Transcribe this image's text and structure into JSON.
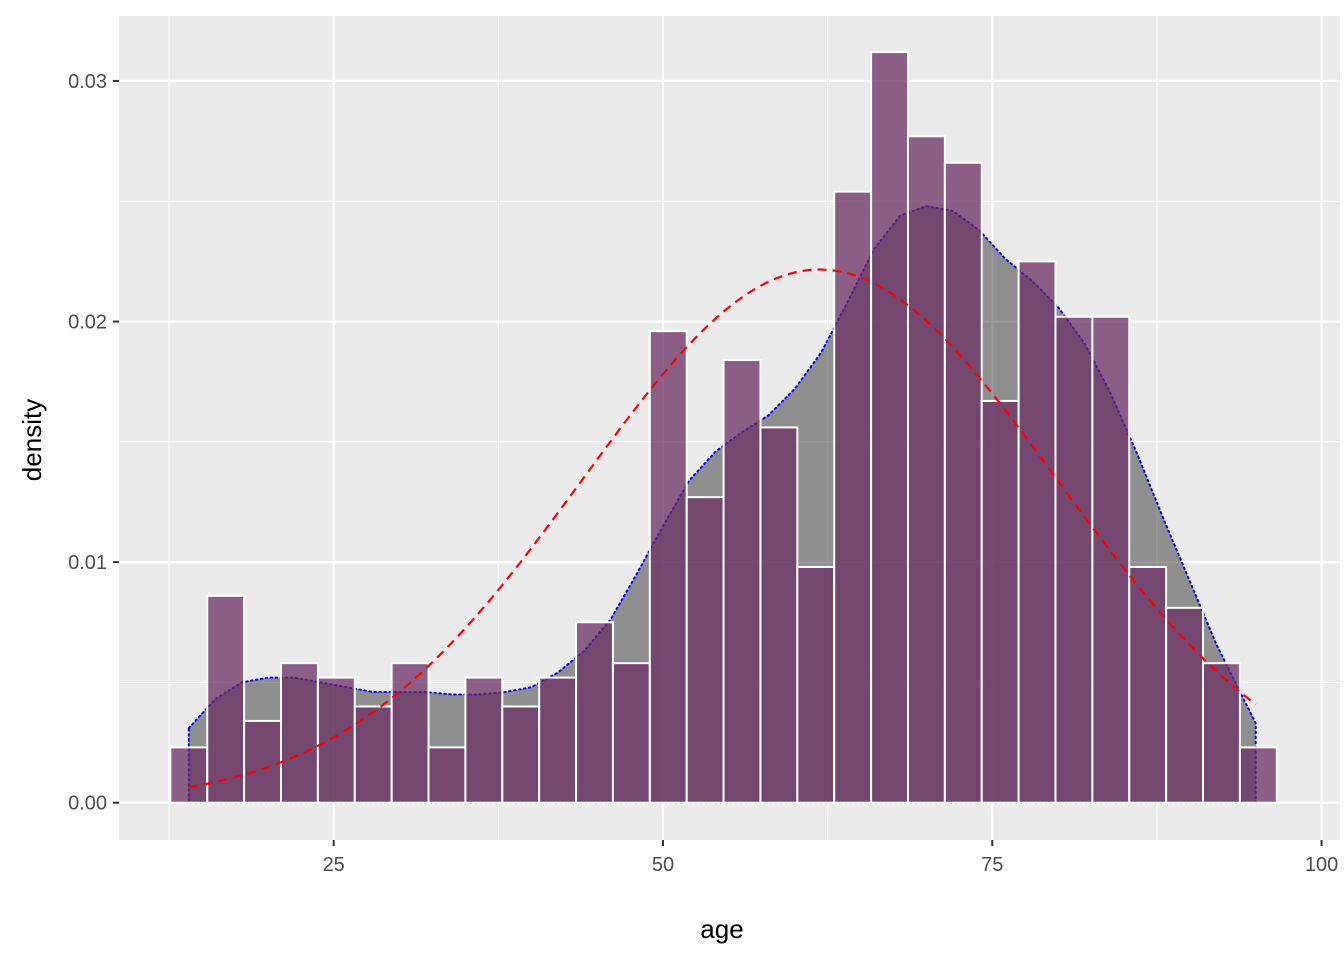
{
  "chart_data": {
    "type": "histogram",
    "xlabel": "age",
    "ylabel": "density",
    "xlim": [
      8.7,
      101.4
    ],
    "ylim": [
      -0.00155,
      0.0327
    ],
    "x_ticks": [
      25,
      50,
      75,
      100
    ],
    "x_tick_labels": [
      "25",
      "50",
      "75",
      "100"
    ],
    "y_ticks": [
      0,
      0.01,
      0.02,
      0.03
    ],
    "y_tick_labels": [
      "0.00",
      "0.01",
      "0.02",
      "0.03"
    ],
    "grid": true,
    "legend": "none",
    "bin_width": 2.8,
    "bins": [
      {
        "x0": 12.6,
        "x1": 15.4,
        "density": 0.0023
      },
      {
        "x0": 15.4,
        "x1": 18.2,
        "density": 0.0086
      },
      {
        "x0": 18.2,
        "x1": 21.0,
        "density": 0.0034
      },
      {
        "x0": 21.0,
        "x1": 23.8,
        "density": 0.0058
      },
      {
        "x0": 23.8,
        "x1": 26.6,
        "density": 0.0052
      },
      {
        "x0": 26.6,
        "x1": 29.4,
        "density": 0.004
      },
      {
        "x0": 29.4,
        "x1": 32.2,
        "density": 0.0058
      },
      {
        "x0": 32.2,
        "x1": 35.0,
        "density": 0.0023
      },
      {
        "x0": 35.0,
        "x1": 37.8,
        "density": 0.0052
      },
      {
        "x0": 37.8,
        "x1": 40.6,
        "density": 0.004
      },
      {
        "x0": 40.6,
        "x1": 43.4,
        "density": 0.0052
      },
      {
        "x0": 43.4,
        "x1": 46.2,
        "density": 0.0075
      },
      {
        "x0": 46.2,
        "x1": 49.0,
        "density": 0.0058
      },
      {
        "x0": 49.0,
        "x1": 51.8,
        "density": 0.0196
      },
      {
        "x0": 51.8,
        "x1": 54.6,
        "density": 0.0127
      },
      {
        "x0": 54.6,
        "x1": 57.4,
        "density": 0.0184
      },
      {
        "x0": 57.4,
        "x1": 60.2,
        "density": 0.0156
      },
      {
        "x0": 60.2,
        "x1": 63.0,
        "density": 0.0098
      },
      {
        "x0": 63.0,
        "x1": 65.8,
        "density": 0.0254
      },
      {
        "x0": 65.8,
        "x1": 68.6,
        "density": 0.0312
      },
      {
        "x0": 68.6,
        "x1": 71.4,
        "density": 0.0277
      },
      {
        "x0": 71.4,
        "x1": 74.2,
        "density": 0.0266
      },
      {
        "x0": 74.2,
        "x1": 77.0,
        "density": 0.0167
      },
      {
        "x0": 77.0,
        "x1": 79.8,
        "density": 0.0225
      },
      {
        "x0": 79.8,
        "x1": 82.6,
        "density": 0.0202
      },
      {
        "x0": 82.6,
        "x1": 85.4,
        "density": 0.0202
      },
      {
        "x0": 85.4,
        "x1": 88.2,
        "density": 0.0098
      },
      {
        "x0": 88.2,
        "x1": 91.0,
        "density": 0.0081
      },
      {
        "x0": 91.0,
        "x1": 93.8,
        "density": 0.0058
      },
      {
        "x0": 93.8,
        "x1": 96.6,
        "density": 0.0023
      }
    ],
    "kde": {
      "x": [
        14,
        16,
        18,
        20,
        22,
        24,
        26,
        28,
        30,
        32,
        34,
        36,
        38,
        40,
        42,
        44,
        46,
        48,
        50,
        52,
        54,
        56,
        58,
        60,
        62,
        64,
        66,
        68,
        70,
        72,
        74,
        76,
        78,
        80,
        82,
        84,
        86,
        88,
        90,
        92,
        94,
        95
      ],
      "y": [
        0.0031,
        0.0043,
        0.005,
        0.0052,
        0.0052,
        0.005,
        0.0048,
        0.0046,
        0.0046,
        0.0046,
        0.0045,
        0.0045,
        0.0046,
        0.0048,
        0.0054,
        0.0063,
        0.0076,
        0.0095,
        0.0115,
        0.0134,
        0.0146,
        0.0154,
        0.0161,
        0.0172,
        0.0187,
        0.0208,
        0.023,
        0.0244,
        0.0248,
        0.0246,
        0.0238,
        0.0226,
        0.0217,
        0.0206,
        0.0191,
        0.017,
        0.0145,
        0.0118,
        0.0092,
        0.0066,
        0.0044,
        0.0033
      ]
    },
    "normal_curve": {
      "mean": 61.9,
      "sd": 18.0,
      "x_range": [
        14,
        95
      ]
    },
    "colors": {
      "panel_bg": "#ebebeb",
      "grid": "#ffffff",
      "bar_fill": "#6b2f63",
      "bar_opacity": 0.75,
      "bar_outline": "#ffffff",
      "kde_fill": "#333333",
      "kde_opacity": 0.5,
      "kde_line": "#0000ff",
      "normal_line": "#ff0000"
    }
  }
}
